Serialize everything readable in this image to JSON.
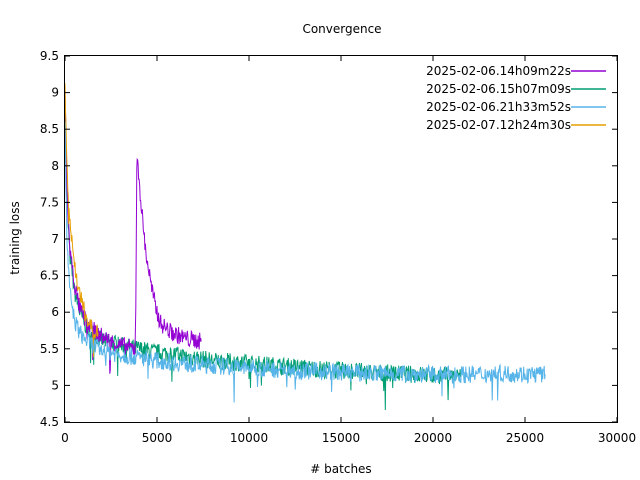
{
  "chart_data": {
    "type": "line",
    "title": "Convergence",
    "xlabel": "# batches",
    "ylabel": "training loss",
    "xlim": [
      0,
      30000
    ],
    "ylim": [
      4.5,
      9.5
    ],
    "xticks": [
      0,
      5000,
      10000,
      15000,
      20000,
      25000,
      30000
    ],
    "xtick_labels": [
      "0",
      "5000",
      "10000",
      "15000",
      "20000",
      "25000",
      "30000"
    ],
    "yticks": [
      4.5,
      5,
      5.5,
      6,
      6.5,
      7,
      7.5,
      8,
      8.5,
      9,
      9.5
    ],
    "ytick_labels": [
      "4.5",
      "5",
      "5.5",
      "6",
      "6.5",
      "7",
      "7.5",
      "8",
      "8.5",
      "9",
      "9.5"
    ],
    "grid": false,
    "legend_position": "top-right",
    "series": [
      {
        "name": "2025-02-06.14h09m22s",
        "color": "#9400d3",
        "x": [
          0,
          100,
          250,
          500,
          800,
          1200,
          1700,
          2300,
          3000,
          3800,
          3850,
          3900,
          4000,
          4200,
          4400,
          4600,
          4800,
          5000,
          5200,
          5500,
          5800,
          6200,
          6600,
          7000,
          7400
        ],
        "y": [
          9.1,
          7.7,
          6.9,
          6.4,
          6.05,
          5.85,
          5.72,
          5.62,
          5.55,
          5.5,
          6.1,
          8.05,
          7.9,
          7.3,
          6.8,
          6.5,
          6.2,
          6.0,
          5.85,
          5.78,
          5.72,
          5.68,
          5.64,
          5.62,
          5.6
        ]
      },
      {
        "name": "2025-02-06.15h07m09s",
        "color": "#009e73",
        "x": [
          0,
          100,
          250,
          500,
          800,
          1200,
          2000,
          3000,
          4000,
          5000,
          6000,
          7000,
          8000,
          9000,
          10000,
          12000,
          14000,
          16000,
          18000,
          20000,
          21500
        ],
        "y": [
          9.0,
          7.6,
          6.8,
          6.3,
          6.0,
          5.78,
          5.62,
          5.55,
          5.5,
          5.45,
          5.42,
          5.38,
          5.34,
          5.32,
          5.3,
          5.26,
          5.22,
          5.19,
          5.16,
          5.14,
          5.12
        ]
      },
      {
        "name": "2025-02-06.21h33m52s",
        "color": "#56b4e9",
        "x": [
          0,
          100,
          250,
          500,
          800,
          1200,
          2000,
          3000,
          4000,
          5000,
          6000,
          8000,
          10000,
          12000,
          14000,
          16000,
          18000,
          20000,
          22000,
          24000,
          26100
        ],
        "y": [
          8.6,
          7.0,
          6.3,
          5.9,
          5.72,
          5.6,
          5.48,
          5.42,
          5.38,
          5.34,
          5.31,
          5.27,
          5.24,
          5.21,
          5.19,
          5.17,
          5.16,
          5.15,
          5.15,
          5.16,
          5.15
        ]
      },
      {
        "name": "2025-02-07.12h24m30s",
        "color": "#e69f00",
        "x": [
          0,
          100,
          250,
          400,
          600,
          800,
          1000,
          1200,
          1400,
          1600,
          1800
        ],
        "y": [
          9.1,
          8.0,
          7.3,
          6.9,
          6.5,
          6.25,
          6.05,
          5.9,
          5.82,
          5.75,
          5.72
        ]
      }
    ]
  }
}
